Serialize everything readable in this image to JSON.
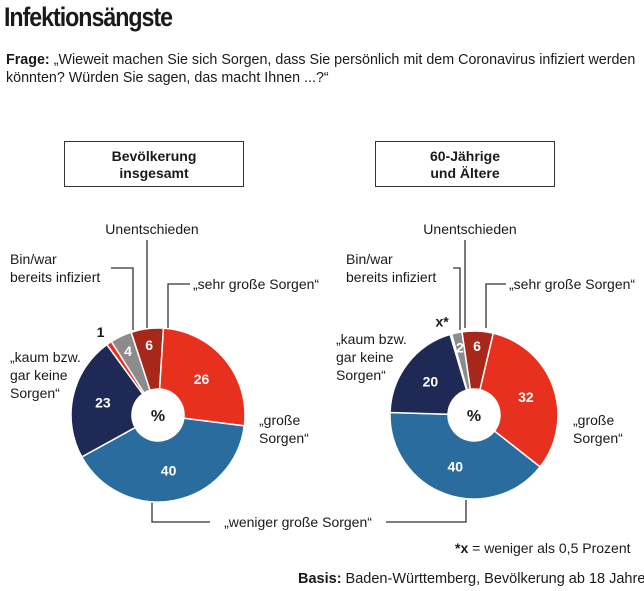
{
  "title": "Infektionsängste",
  "question": {
    "label": "Frage:",
    "text": "„Wieweit machen Sie sich Sorgen, dass Sie persönlich mit dem Coronavirus infiziert werden könnten? Würden Sie sagen, das macht Ihnen ...?“"
  },
  "footnote": {
    "symbol": "*x",
    "text": " = weniger als 0,5 Prozent"
  },
  "basis": {
    "label": "Basis:",
    "text": " Baden-Württemberg, Bevölkerung ab 18 Jahre"
  },
  "center_symbol": "%",
  "colors": {
    "sehr_grosse": "#a8271b",
    "grosse": "#e8301f",
    "weniger_grosse": "#2a6c9e",
    "kaum": "#1e2a55",
    "infiziert": "#e8301f",
    "unentschieden": "#8c8c8c"
  },
  "chart_data": [
    {
      "type": "pie",
      "title_line1": "Bevölkerung",
      "title_line2": "insgesamt",
      "slices": [
        {
          "key": "sehr_grosse",
          "value": 6,
          "display": "6"
        },
        {
          "key": "grosse",
          "value": 26,
          "display": "26"
        },
        {
          "key": "weniger_grosse",
          "value": 40,
          "display": "40"
        },
        {
          "key": "kaum",
          "value": 23,
          "display": "23"
        },
        {
          "key": "infiziert",
          "value": 1,
          "display": "1"
        },
        {
          "key": "unentschieden",
          "value": 4,
          "display": "4"
        }
      ]
    },
    {
      "type": "pie",
      "title_line1": "60-Jährige",
      "title_line2": "und Ältere",
      "slices": [
        {
          "key": "sehr_grosse",
          "value": 6,
          "display": "6"
        },
        {
          "key": "grosse",
          "value": 32,
          "display": "32"
        },
        {
          "key": "weniger_grosse",
          "value": 40,
          "display": "40"
        },
        {
          "key": "kaum",
          "value": 20,
          "display": "20"
        },
        {
          "key": "infiziert",
          "value": 0.3,
          "display": "x*"
        },
        {
          "key": "unentschieden",
          "value": 2,
          "display": "2"
        }
      ]
    }
  ],
  "labels": {
    "unentschieden": "Unentschieden",
    "infiziert_line1": "Bin/war",
    "infiziert_line2": "bereits infiziert",
    "sehr_grosse": "„sehr große Sorgen“",
    "grosse_line1": "„große",
    "grosse_line2": "Sorgen“",
    "kaum_line1": "„kaum bzw.",
    "kaum_line2": "gar keine",
    "kaum_line3": "Sorgen“",
    "weniger_grosse": "„weniger große Sorgen“"
  }
}
